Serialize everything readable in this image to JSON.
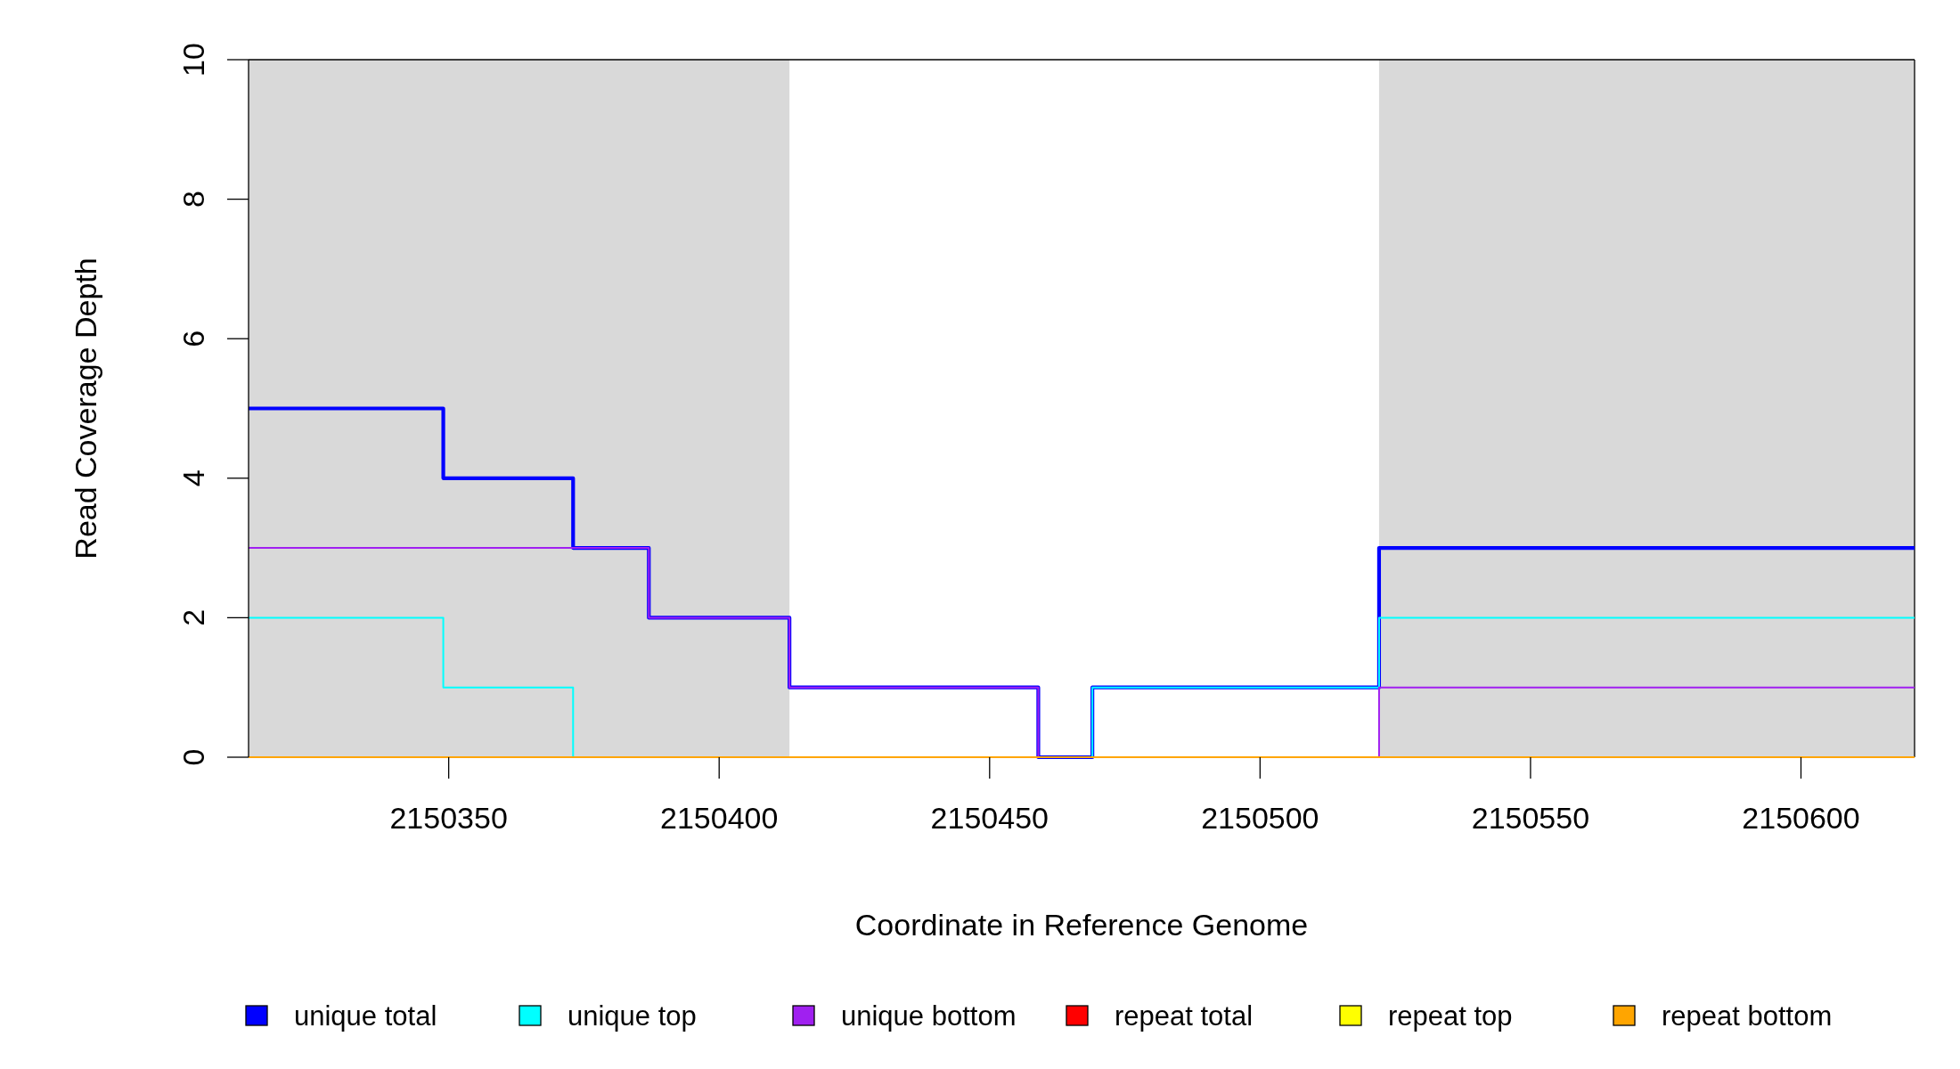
{
  "chart_data": {
    "type": "step",
    "xlabel": "Coordinate in Reference Genome",
    "ylabel": "Read Coverage Depth",
    "x": [
      2150313,
      2150349,
      2150373,
      2150387,
      2150413,
      2150459,
      2150469,
      2150522,
      2150621
    ],
    "xlim": [
      2150313,
      2150621
    ],
    "xticks": [
      2150350,
      2150400,
      2150450,
      2150500,
      2150550,
      2150600
    ],
    "ylim": [
      0,
      10
    ],
    "yticks": [
      0,
      2,
      4,
      6,
      8,
      10
    ],
    "bands": [
      {
        "axis": "x",
        "from": 2150313,
        "to": 2150413,
        "color": "#d9d9d9"
      },
      {
        "axis": "x",
        "from": 2150522,
        "to": 2150621,
        "color": "#d9d9d9"
      }
    ],
    "series": [
      {
        "name": "unique total",
        "color": "#0000ff",
        "values": [
          5,
          4,
          3,
          2,
          1,
          0,
          1,
          3,
          3
        ]
      },
      {
        "name": "unique top",
        "color": "#00ffff",
        "values": [
          2,
          1,
          0,
          0,
          0,
          0,
          1,
          2,
          2
        ]
      },
      {
        "name": "unique bottom",
        "color": "#a020f0",
        "values": [
          3,
          3,
          3,
          2,
          1,
          0,
          0,
          1,
          1
        ]
      },
      {
        "name": "repeat total",
        "color": "#ff0000",
        "values": [
          null,
          null,
          null,
          null,
          null,
          null,
          null,
          null,
          null
        ]
      },
      {
        "name": "repeat top",
        "color": "#ffff00",
        "values": [
          null,
          null,
          null,
          null,
          null,
          null,
          null,
          null,
          null
        ]
      },
      {
        "name": "repeat bottom",
        "color": "#ffa500",
        "values": [
          0,
          0,
          0,
          0,
          0,
          0,
          0,
          0,
          0
        ]
      }
    ],
    "legend": "bottom",
    "grid": false
  }
}
